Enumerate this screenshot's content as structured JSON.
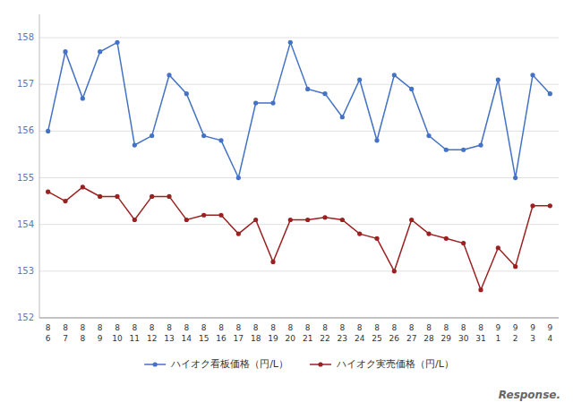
{
  "chart_data": {
    "type": "line",
    "categories": [
      "8\n6",
      "8\n7",
      "8\n8",
      "8\n9",
      "8\n10",
      "8\n11",
      "8\n12",
      "8\n13",
      "8\n14",
      "8\n15",
      "8\n16",
      "8\n17",
      "8\n18",
      "8\n19",
      "8\n20",
      "8\n21",
      "8\n22",
      "8\n23",
      "8\n24",
      "8\n25",
      "8\n26",
      "8\n27",
      "8\n28",
      "8\n29",
      "8\n30",
      "8\n31",
      "9\n1",
      "9\n2",
      "9\n3",
      "9\n4"
    ],
    "series": [
      {
        "name": "ハイオク看板価格（円/L）",
        "color": "#4472C4",
        "marker": "circle",
        "line_style": "solid",
        "values": [
          156.0,
          157.7,
          156.7,
          157.7,
          157.9,
          155.7,
          155.9,
          157.2,
          156.8,
          155.9,
          155.8,
          155.0,
          156.6,
          156.6,
          157.9,
          156.9,
          156.8,
          156.3,
          157.1,
          155.8,
          157.2,
          156.9,
          155.9,
          155.6,
          155.6,
          155.7,
          157.1,
          155.0,
          157.2,
          156.8
        ]
      },
      {
        "name": "ハイオク実売価格（円/L）",
        "color": "#9B2020",
        "marker": "circle",
        "line_style": "solid",
        "values": [
          154.7,
          154.5,
          154.8,
          154.6,
          154.6,
          154.1,
          154.6,
          154.6,
          154.1,
          154.2,
          154.2,
          153.8,
          154.1,
          153.2,
          154.1,
          154.1,
          154.15,
          154.1,
          153.8,
          153.7,
          153.0,
          154.1,
          153.8,
          153.7,
          153.6,
          152.6,
          153.5,
          153.1,
          154.4,
          154.4
        ]
      }
    ],
    "ylim": [
      152,
      158.5
    ],
    "yticks": [
      152,
      153,
      154,
      155,
      156,
      157,
      158
    ],
    "grid": true,
    "legend": "bottom",
    "annotations": [
      "Response."
    ]
  }
}
